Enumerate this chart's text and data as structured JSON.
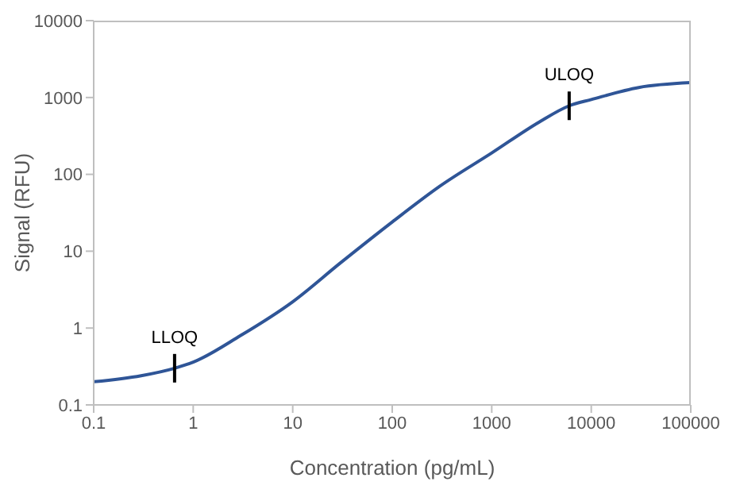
{
  "chart_data": {
    "type": "line",
    "xlabel": "Concentration (pg/mL)",
    "ylabel": "Signal (RFU)",
    "x": [
      0.1,
      0.3,
      0.65,
      1,
      3,
      10,
      30,
      100,
      300,
      1000,
      3000,
      6000,
      10000,
      30000,
      100000
    ],
    "series": [
      {
        "color": "#2f5597",
        "values": [
          0.2,
          0.24,
          0.3,
          0.36,
          0.8,
          2.2,
          7,
          24,
          70,
          190,
          480,
          780,
          940,
          1350,
          1560
        ]
      }
    ],
    "log": "xy",
    "xlim": [
      0.1,
      100000
    ],
    "xticks": [
      0.1,
      1,
      10,
      100,
      1000,
      10000,
      100000
    ],
    "ylim": [
      0.1,
      10000
    ],
    "yticks": [
      0.1,
      1,
      10,
      100,
      1000,
      10000
    ],
    "grid": false,
    "legend": false,
    "marker": "none",
    "line_style": "solid",
    "annotations": [
      {
        "text": "LLOQ",
        "x": 0.65,
        "y": 0.3
      },
      {
        "text": "ULOQ",
        "x": 6000,
        "y": 780
      }
    ]
  }
}
